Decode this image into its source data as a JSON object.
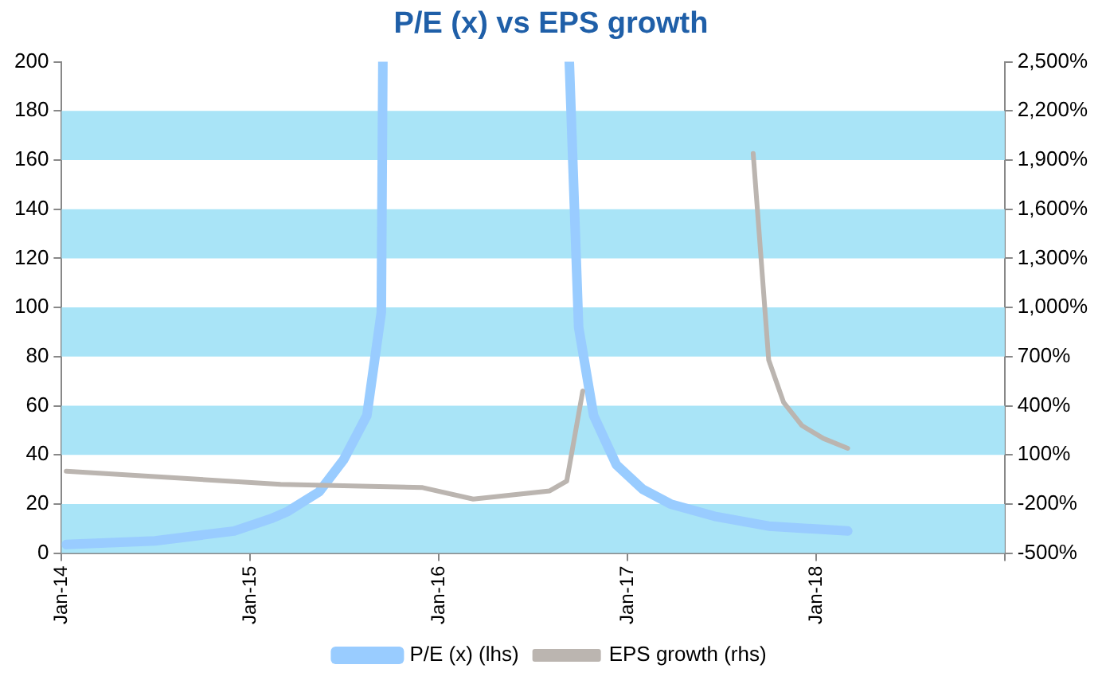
{
  "chart_data": {
    "type": "line",
    "title": "P/E (x) vs EPS growth",
    "xlim": [
      "2014-01",
      "2019-01"
    ],
    "xticks": [
      {
        "value": "2014-01",
        "label": "Jan-14"
      },
      {
        "value": "2015-01",
        "label": "Jan-15"
      },
      {
        "value": "2016-01",
        "label": "Jan-16"
      },
      {
        "value": "2017-01",
        "label": "Jan-17"
      },
      {
        "value": "2018-01",
        "label": "Jan-18"
      },
      {
        "value": "2019-01",
        "label": null
      }
    ],
    "ylim": [
      0,
      200
    ],
    "yticks": [
      0,
      20,
      40,
      60,
      80,
      100,
      120,
      140,
      160,
      180,
      200
    ],
    "y2lim": [
      -500,
      2500
    ],
    "y2ticks": [
      {
        "value": -500,
        "label": "-500%"
      },
      {
        "value": -200,
        "label": "-200%"
      },
      {
        "value": 100,
        "label": "100%"
      },
      {
        "value": 400,
        "label": "400%"
      },
      {
        "value": 700,
        "label": "700%"
      },
      {
        "value": 1000,
        "label": "1,000%"
      },
      {
        "value": 1300,
        "label": "1,300%"
      },
      {
        "value": 1600,
        "label": "1,600%"
      },
      {
        "value": 1900,
        "label": "1,900%"
      },
      {
        "value": 2200,
        "label": "2,200%"
      },
      {
        "value": 2500,
        "label": "2,500%"
      }
    ],
    "grid": false,
    "legend": "bottom",
    "marker": "none",
    "line_style": "solid",
    "bands": [
      {
        "axis": "y",
        "from": 0,
        "to": 20,
        "color": "#a9e4f7"
      },
      {
        "axis": "y",
        "from": 40,
        "to": 60,
        "color": "#a9e4f7"
      },
      {
        "axis": "y",
        "from": 80,
        "to": 100,
        "color": "#a9e4f7"
      },
      {
        "axis": "y",
        "from": 120,
        "to": 140,
        "color": "#a9e4f7"
      },
      {
        "axis": "y",
        "from": 160,
        "to": 180,
        "color": "#a9e4f7"
      }
    ],
    "series": [
      {
        "name": "P/E (x) (lhs)",
        "color": "#99ccff",
        "x": [
          "2014-01-10",
          "2014-07-01",
          "2014-12-01",
          "2015-02-10",
          "2015-03-15",
          "2015-05-15",
          "2015-07-01",
          "2015-08-15",
          "2015-09-12",
          "2015-09-15",
          "2016-01-01",
          "2016-09-10",
          "2016-09-28",
          "2016-10-27",
          "2016-12-10",
          "2017-01-30",
          "2017-03-25",
          "2017-06-18",
          "2017-10-01",
          "2018-03-03"
        ],
        "values": [
          3.5,
          5,
          9,
          14,
          17,
          25,
          38,
          56,
          98,
          200,
          null,
          200,
          92,
          56,
          36,
          26,
          20,
          15,
          11,
          9
        ]
      },
      {
        "name": "EPS growth (rhs)",
        "color": "#bbb5b0",
        "axis": "y2",
        "x": [
          "2014-01-10",
          "2015-03-01",
          "2015-12-01",
          "2016-03-08",
          "2016-08-03",
          "2016-09-05",
          "2016-10-06",
          "2017-03-01",
          "2017-09-01",
          "2017-10-01",
          "2017-10-30",
          "2017-12-04",
          "2018-01-15",
          "2018-03-03"
        ],
        "values": [
          0,
          -80,
          -100,
          -170,
          -120,
          -60,
          490,
          null,
          1940,
          680,
          420,
          280,
          200,
          140
        ]
      }
    ]
  }
}
